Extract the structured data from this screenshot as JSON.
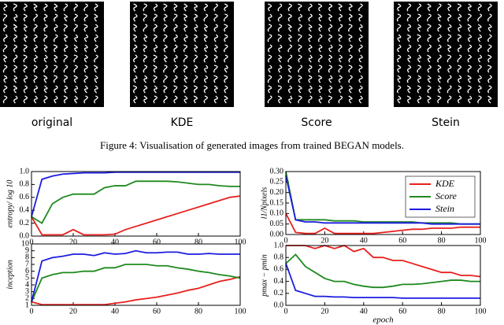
{
  "images": {
    "labels": [
      "original",
      "KDE",
      "Score",
      "Stein"
    ]
  },
  "caption": "Figure 4: Visualisation of generated images from trained BEGAN models.",
  "chart_data": [
    {
      "type": "line",
      "ylabel": "entropy/ log 10",
      "x": [
        0,
        5,
        10,
        15,
        20,
        25,
        30,
        35,
        40,
        45,
        50,
        55,
        60,
        65,
        70,
        75,
        80,
        85,
        90,
        95,
        100
      ],
      "xlim": [
        0,
        100
      ],
      "xticks": [
        0,
        20,
        40,
        60,
        80,
        100
      ],
      "ylim": [
        0,
        1
      ],
      "yticks": [
        {
          "value": 0,
          "label": "0.0"
        },
        {
          "value": 0.2,
          "label": "0.2"
        },
        {
          "value": 0.4,
          "label": "0.4"
        },
        {
          "value": 0.6,
          "label": "0.6"
        },
        {
          "value": 0.8,
          "label": "0.8"
        },
        {
          "value": 1,
          "label": "1.0"
        }
      ],
      "series": [
        {
          "color": "#e8211e",
          "values": [
            0.3,
            0.02,
            0.02,
            0.02,
            0.1,
            0.02,
            0.02,
            0.02,
            0.03,
            0.1,
            0.15,
            0.2,
            0.25,
            0.3,
            0.35,
            0.4,
            0.45,
            0.5,
            0.55,
            0.6,
            0.62
          ]
        },
        {
          "color": "#1f8a1f",
          "values": [
            0.3,
            0.2,
            0.5,
            0.6,
            0.65,
            0.65,
            0.65,
            0.75,
            0.78,
            0.78,
            0.85,
            0.85,
            0.85,
            0.85,
            0.84,
            0.82,
            0.8,
            0.8,
            0.78,
            0.77,
            0.77
          ]
        },
        {
          "color": "#1c1ce0",
          "values": [
            0.3,
            0.88,
            0.93,
            0.96,
            0.97,
            0.98,
            0.98,
            0.98,
            0.99,
            0.99,
            0.99,
            0.99,
            0.99,
            0.99,
            0.99,
            0.99,
            0.99,
            0.99,
            0.99,
            0.99,
            0.99
          ]
        }
      ]
    },
    {
      "type": "line",
      "ylabel": "l1/Npixels",
      "legend": "upper right",
      "x": [
        0,
        5,
        10,
        15,
        20,
        25,
        30,
        35,
        40,
        45,
        50,
        55,
        60,
        65,
        70,
        75,
        80,
        85,
        90,
        95,
        100
      ],
      "xlim": [
        0,
        100
      ],
      "xticks": [
        0,
        20,
        40,
        60,
        80,
        100
      ],
      "ylim": [
        0,
        0.3
      ],
      "yticks": [
        {
          "value": 0,
          "label": "0.00"
        },
        {
          "value": 0.05,
          "label": "0.05"
        },
        {
          "value": 0.1,
          "label": "0.10"
        },
        {
          "value": 0.15,
          "label": "0.15"
        },
        {
          "value": 0.2,
          "label": "0.20"
        },
        {
          "value": 0.25,
          "label": "0.25"
        },
        {
          "value": 0.3,
          "label": "0.30"
        }
      ],
      "series": [
        {
          "name": "KDE",
          "color": "#e8211e",
          "values": [
            0.1,
            0.01,
            0.005,
            0.005,
            0.03,
            0.005,
            0.005,
            0.005,
            0.005,
            0.005,
            0.01,
            0.015,
            0.02,
            0.025,
            0.025,
            0.03,
            0.03,
            0.03,
            0.035,
            0.035,
            0.035
          ]
        },
        {
          "name": "Score",
          "color": "#1f8a1f",
          "values": [
            0.3,
            0.07,
            0.07,
            0.07,
            0.07,
            0.065,
            0.065,
            0.065,
            0.06,
            0.06,
            0.06,
            0.06,
            0.06,
            0.06,
            0.055,
            0.055,
            0.055,
            0.055,
            0.05,
            0.05,
            0.05
          ]
        },
        {
          "name": "Stein",
          "color": "#1c1ce0",
          "values": [
            0.28,
            0.07,
            0.06,
            0.06,
            0.055,
            0.055,
            0.055,
            0.055,
            0.055,
            0.055,
            0.055,
            0.055,
            0.055,
            0.055,
            0.055,
            0.05,
            0.05,
            0.05,
            0.05,
            0.05,
            0.05
          ]
        }
      ]
    },
    {
      "type": "line",
      "ylabel": "inception",
      "x": [
        0,
        5,
        10,
        15,
        20,
        25,
        30,
        35,
        40,
        45,
        50,
        55,
        60,
        65,
        70,
        75,
        80,
        85,
        90,
        95,
        100
      ],
      "xlim": [
        0,
        100
      ],
      "xticks": [
        0,
        20,
        40,
        60,
        80,
        100
      ],
      "ylim": [
        1,
        10
      ],
      "yticks": [
        1,
        2,
        3,
        4,
        5,
        6,
        7,
        8,
        9,
        10
      ],
      "series": [
        {
          "color": "#e8211e",
          "values": [
            1.5,
            1.1,
            1.1,
            1.1,
            1.1,
            1.1,
            1.1,
            1.1,
            1.3,
            1.5,
            1.8,
            2.0,
            2.2,
            2.5,
            2.8,
            3.2,
            3.5,
            4.0,
            4.5,
            4.8,
            5.2
          ]
        },
        {
          "color": "#1f8a1f",
          "values": [
            1.5,
            5.0,
            5.5,
            5.8,
            5.8,
            6.0,
            6.0,
            6.5,
            6.5,
            7.0,
            7.0,
            7.0,
            6.8,
            6.8,
            6.5,
            6.3,
            6.0,
            5.8,
            5.5,
            5.3,
            5.0
          ]
        },
        {
          "color": "#1c1ce0",
          "values": [
            1.5,
            7.5,
            8.0,
            8.2,
            8.5,
            8.5,
            8.3,
            8.7,
            8.5,
            8.6,
            9.0,
            8.7,
            8.7,
            8.8,
            8.8,
            8.5,
            8.5,
            8.6,
            8.5,
            8.5,
            8.5
          ]
        }
      ]
    },
    {
      "type": "line",
      "ylabel": "pmax − pmin",
      "xlabel": "epoch",
      "x": [
        0,
        5,
        10,
        15,
        20,
        25,
        30,
        35,
        40,
        45,
        50,
        55,
        60,
        65,
        70,
        75,
        80,
        85,
        90,
        95,
        100
      ],
      "xlim": [
        0,
        100
      ],
      "xticks": [
        0,
        20,
        40,
        60,
        80,
        100
      ],
      "ylim": [
        0,
        1
      ],
      "yticks": [
        {
          "value": 0,
          "label": "0.0"
        },
        {
          "value": 0.2,
          "label": "0.2"
        },
        {
          "value": 0.4,
          "label": "0.4"
        },
        {
          "value": 0.6,
          "label": "0.6"
        },
        {
          "value": 0.8,
          "label": "0.8"
        },
        {
          "value": 1,
          "label": "1.0"
        }
      ],
      "series": [
        {
          "color": "#e8211e",
          "values": [
            1.0,
            1.0,
            1.0,
            0.95,
            1.0,
            0.95,
            1.0,
            0.9,
            0.95,
            0.8,
            0.8,
            0.75,
            0.75,
            0.7,
            0.65,
            0.6,
            0.55,
            0.55,
            0.5,
            0.5,
            0.48
          ]
        },
        {
          "color": "#1f8a1f",
          "values": [
            0.7,
            0.85,
            0.65,
            0.55,
            0.45,
            0.4,
            0.4,
            0.35,
            0.32,
            0.3,
            0.3,
            0.32,
            0.35,
            0.35,
            0.36,
            0.38,
            0.4,
            0.42,
            0.42,
            0.4,
            0.4
          ]
        },
        {
          "color": "#1c1ce0",
          "values": [
            0.7,
            0.25,
            0.2,
            0.15,
            0.15,
            0.14,
            0.14,
            0.13,
            0.13,
            0.13,
            0.13,
            0.13,
            0.12,
            0.12,
            0.12,
            0.12,
            0.12,
            0.12,
            0.12,
            0.12,
            0.12
          ]
        }
      ]
    }
  ]
}
